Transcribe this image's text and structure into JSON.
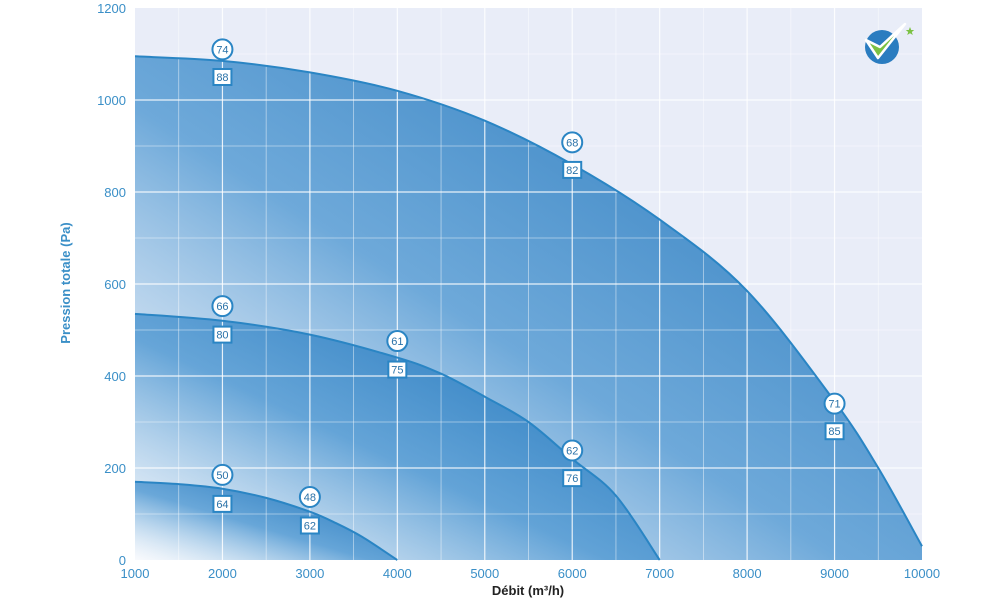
{
  "chart_data": {
    "type": "area",
    "xlabel": "Débit (m³/h)",
    "ylabel": "Pression totale (Pa)",
    "xlim": [
      1000,
      10000
    ],
    "ylim": [
      0,
      1200
    ],
    "x_ticks": [
      "1000",
      "2000",
      "3000",
      "4000",
      "5000",
      "6000",
      "7000",
      "8000",
      "9000",
      "10000"
    ],
    "y_ticks": [
      "0",
      "200",
      "400",
      "600",
      "800",
      "1000",
      "1200"
    ],
    "grid": true,
    "colors": {
      "plot_background": "#e9edf8",
      "curve": "#2a85c4",
      "fill_dark": "#2a7cc0",
      "grid": "#ffffff",
      "axis_text": "#3a8fc7",
      "xlabel_text": "#222222",
      "logo_green": "#7bc143",
      "logo_blue": "#2a7cc0"
    },
    "logo": "check-mark-logo",
    "series": [
      {
        "x": [
          1000,
          2000,
          3000,
          4000,
          5000,
          6000,
          7000,
          8000,
          9000,
          9500,
          10000
        ],
        "y": [
          1095,
          1085,
          1060,
          1020,
          955,
          860,
          740,
          585,
          345,
          200,
          30
        ]
      },
      {
        "x": [
          1000,
          2000,
          3000,
          4000,
          4500,
          5000,
          5500,
          6000,
          6500,
          7000
        ],
        "y": [
          535,
          520,
          490,
          440,
          405,
          355,
          300,
          220,
          140,
          0
        ]
      },
      {
        "x": [
          1000,
          1500,
          2000,
          2500,
          3000,
          3300,
          3600,
          4000
        ],
        "y": [
          170,
          165,
          155,
          135,
          105,
          80,
          50,
          0
        ]
      }
    ],
    "annotations": [
      {
        "x": 2000,
        "circle": "74",
        "square": "88",
        "circle_y": 1110,
        "square_y": 1050
      },
      {
        "x": 6000,
        "circle": "68",
        "square": "82",
        "circle_y": 908,
        "square_y": 848
      },
      {
        "x": 2000,
        "circle": "66",
        "square": "80",
        "circle_y": 552,
        "square_y": 490
      },
      {
        "x": 4000,
        "circle": "61",
        "square": "75",
        "circle_y": 476,
        "square_y": 414
      },
      {
        "x": 9000,
        "circle": "71",
        "square": "85",
        "circle_y": 340,
        "square_y": 280
      },
      {
        "x": 6000,
        "circle": "62",
        "square": "76",
        "circle_y": 238,
        "square_y": 178
      },
      {
        "x": 2000,
        "circle": "50",
        "square": "64",
        "circle_y": 185,
        "square_y": 122
      },
      {
        "x": 3000,
        "circle": "48",
        "square": "62",
        "circle_y": 137,
        "square_y": 75
      }
    ]
  }
}
